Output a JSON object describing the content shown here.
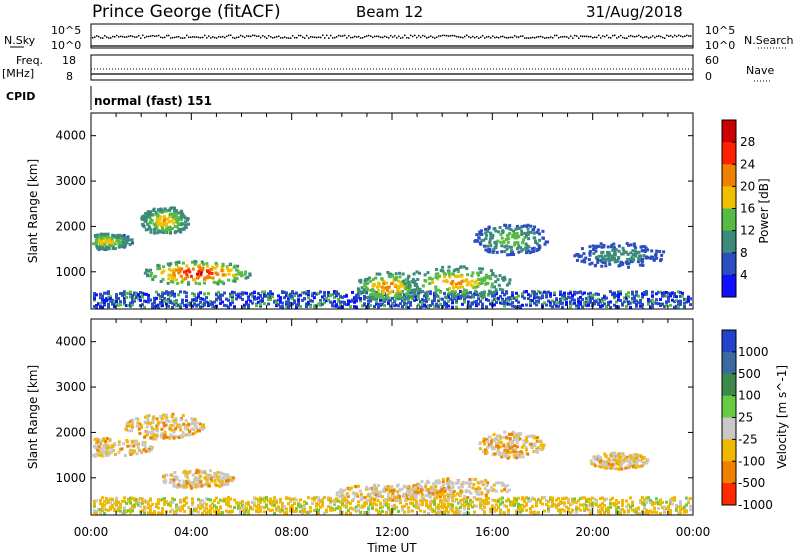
{
  "header": {
    "station": "Prince George (fitACF)",
    "beam": "Beam 12",
    "date": "31/Aug/2018"
  },
  "top_panels": {
    "nsky_label": "N.Sky",
    "nsky_ticks": [
      "10^5",
      "10^0"
    ],
    "nsearch_label": "N.Search",
    "nsearch_ticks": [
      "10^5",
      "10^0"
    ],
    "freq_label_1": "Freq.",
    "freq_label_2": "[MHz]",
    "freq_ticks": [
      "18",
      "8"
    ],
    "nave_label": "Nave",
    "nave_ticks": [
      "60",
      "0"
    ],
    "cpid_label": "CPID",
    "cpid_value": "normal (fast) 151"
  },
  "chart_data": [
    {
      "type": "heatmap",
      "name": "power",
      "ylabel": "Slant Range [km]",
      "yticks": [
        "1000",
        "2000",
        "3000",
        "4000"
      ],
      "ylim": [
        180,
        4500
      ],
      "colorbar_label": "Power [dB]",
      "colorbar_ticks": [
        "4",
        "8",
        "12",
        "16",
        "20",
        "24",
        "28"
      ],
      "colors": [
        "#1010ff",
        "#2a4ec0",
        "#3c8a7a",
        "#55bb44",
        "#f0c000",
        "#f08000",
        "#ff2000",
        "#cc0000"
      ],
      "blobs": [
        {
          "t": 0.5,
          "range": 1700,
          "power": 18
        },
        {
          "t": 2.9,
          "range": 2150,
          "power": 20
        },
        {
          "t": 4.2,
          "range": 1000,
          "power": 28
        },
        {
          "t": 11.8,
          "range": 700,
          "power": 22
        },
        {
          "t": 14.5,
          "range": 800,
          "power": 20
        },
        {
          "t": 16.7,
          "range": 1750,
          "power": 14
        },
        {
          "t": 21.0,
          "range": 1400,
          "power": 10
        }
      ]
    },
    {
      "type": "heatmap",
      "name": "velocity",
      "ylabel": "Slant Range [km]",
      "yticks": [
        "1000",
        "2000",
        "3000",
        "4000"
      ],
      "ylim": [
        180,
        4500
      ],
      "colorbar_label": "Velocity [m s^-1]",
      "colorbar_ticks": [
        "1000",
        "500",
        "100",
        "25",
        "-25",
        "-100",
        "-500",
        "-1000"
      ],
      "colors": [
        "#2244cc",
        "#3a6aa0",
        "#3c8a4a",
        "#66cc44",
        "#c8c8c8",
        "#f0b800",
        "#f08000",
        "#ff2a00"
      ]
    }
  ],
  "xaxis": {
    "label": "Time UT",
    "ticks": [
      "00:00",
      "04:00",
      "08:00",
      "12:00",
      "16:00",
      "20:00",
      "00:00"
    ],
    "range_hours": [
      0,
      24
    ]
  }
}
